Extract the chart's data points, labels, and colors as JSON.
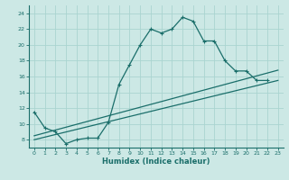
{
  "xlabel": "Humidex (Indice chaleur)",
  "bg_color": "#cce8e5",
  "line_color": "#1a6e6a",
  "grid_color": "#aad4d0",
  "xlim": [
    -0.5,
    23.5
  ],
  "ylim": [
    7,
    25
  ],
  "xticks": [
    0,
    1,
    2,
    3,
    4,
    5,
    6,
    7,
    8,
    9,
    10,
    11,
    12,
    13,
    14,
    15,
    16,
    17,
    18,
    19,
    20,
    21,
    22,
    23
  ],
  "yticks": [
    8,
    10,
    12,
    14,
    16,
    18,
    20,
    22,
    24
  ],
  "line1_x": [
    0,
    1,
    2,
    3,
    4,
    5,
    6,
    7,
    8,
    9,
    10,
    11,
    12,
    13,
    14,
    15,
    16,
    17,
    18,
    19,
    20,
    21,
    22
  ],
  "line1_y": [
    11.5,
    9.5,
    9.0,
    7.5,
    8.0,
    8.2,
    8.2,
    10.2,
    15.0,
    17.5,
    20.0,
    22.0,
    21.5,
    22.0,
    23.5,
    23.0,
    20.5,
    20.5,
    18.0,
    16.7,
    16.7,
    15.5,
    15.5
  ],
  "line2_x": [
    0,
    23
  ],
  "line2_y": [
    8.5,
    16.8
  ],
  "line3_x": [
    0,
    23
  ],
  "line3_y": [
    8.0,
    15.5
  ]
}
